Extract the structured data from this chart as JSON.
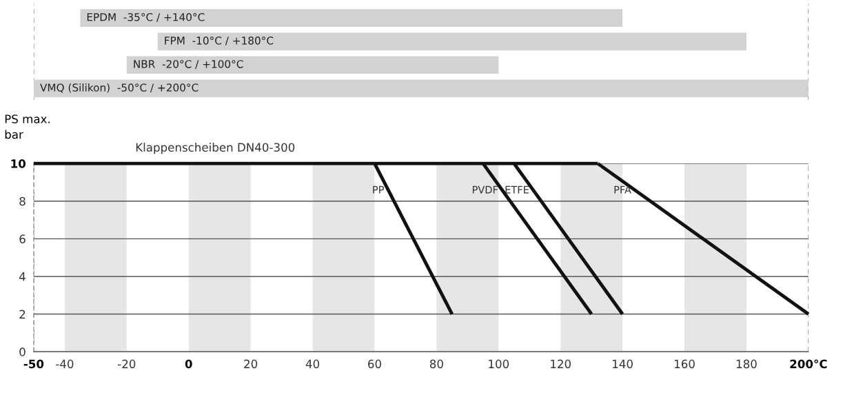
{
  "chart_data": [
    {
      "type": "bar",
      "orientation": "horizontal",
      "categories": [
        "EPDM  -35°C / +140°C",
        "FPM  -10°C / +180°C",
        "NBR  -20°C / +100°C",
        "VMQ (Silikon)  -50°C / +200°C"
      ],
      "base": [
        -35,
        -10,
        -20,
        -50
      ],
      "values": [
        175,
        190,
        120,
        250
      ],
      "color": "#d2d2d2",
      "xlim": [
        -50,
        200
      ],
      "tick_labels": false,
      "ref_lines": [
        {
          "axis": "x",
          "value": -50,
          "label": null,
          "color": "#808080",
          "line_style": "dashed"
        },
        {
          "axis": "x",
          "value": 200,
          "label": null,
          "color": "#808080",
          "line_style": "dashed"
        }
      ]
    },
    {
      "type": "line",
      "ylabel": "PS max.\nbar",
      "series": [
        {
          "name": "Klappenscheiben DN40-300",
          "x": [
            -50,
            132
          ],
          "values": [
            10,
            10
          ],
          "color": "#111111"
        },
        {
          "name": "PP",
          "x": [
            60,
            85
          ],
          "values": [
            10,
            2
          ],
          "color": "#111111"
        },
        {
          "name": "PVDF",
          "x": [
            95,
            130
          ],
          "values": [
            10,
            2
          ],
          "color": "#111111"
        },
        {
          "name": "ETFE",
          "x": [
            105,
            140
          ],
          "values": [
            10,
            2
          ],
          "color": "#111111"
        },
        {
          "name": "PFA",
          "x": [
            132,
            200
          ],
          "values": [
            10,
            2
          ],
          "color": "#111111"
        }
      ],
      "xlim": [
        -50,
        200
      ],
      "xticks": [
        -50,
        -40,
        -20,
        0,
        20,
        40,
        60,
        80,
        100,
        120,
        140,
        160,
        180,
        {
          "value": 200,
          "label": "200°C"
        }
      ],
      "ylim": [
        0,
        10
      ],
      "yticks": [
        0,
        2,
        4,
        6,
        8,
        10
      ],
      "grid": "y",
      "line_style": "solid",
      "marker": "none",
      "bands": [
        {
          "axis": "x",
          "from": -40,
          "to": -20,
          "label": null,
          "color": "#e6e6e6"
        },
        {
          "axis": "x",
          "from": 0,
          "to": 20,
          "label": null,
          "color": "#e6e6e6"
        },
        {
          "axis": "x",
          "from": 40,
          "to": 60,
          "label": null,
          "color": "#e6e6e6"
        },
        {
          "axis": "x",
          "from": 80,
          "to": 100,
          "label": null,
          "color": "#e6e6e6"
        },
        {
          "axis": "x",
          "from": 120,
          "to": 140,
          "label": null,
          "color": "#e6e6e6"
        },
        {
          "axis": "x",
          "from": 160,
          "to": 180,
          "label": null,
          "color": "#e6e6e6"
        }
      ],
      "ref_lines": [
        {
          "axis": "x",
          "value": -50,
          "label": null,
          "color": "#808080",
          "line_style": "dashed"
        },
        {
          "axis": "x",
          "value": 200,
          "label": null,
          "color": "#808080",
          "line_style": "dashed"
        }
      ]
    }
  ]
}
